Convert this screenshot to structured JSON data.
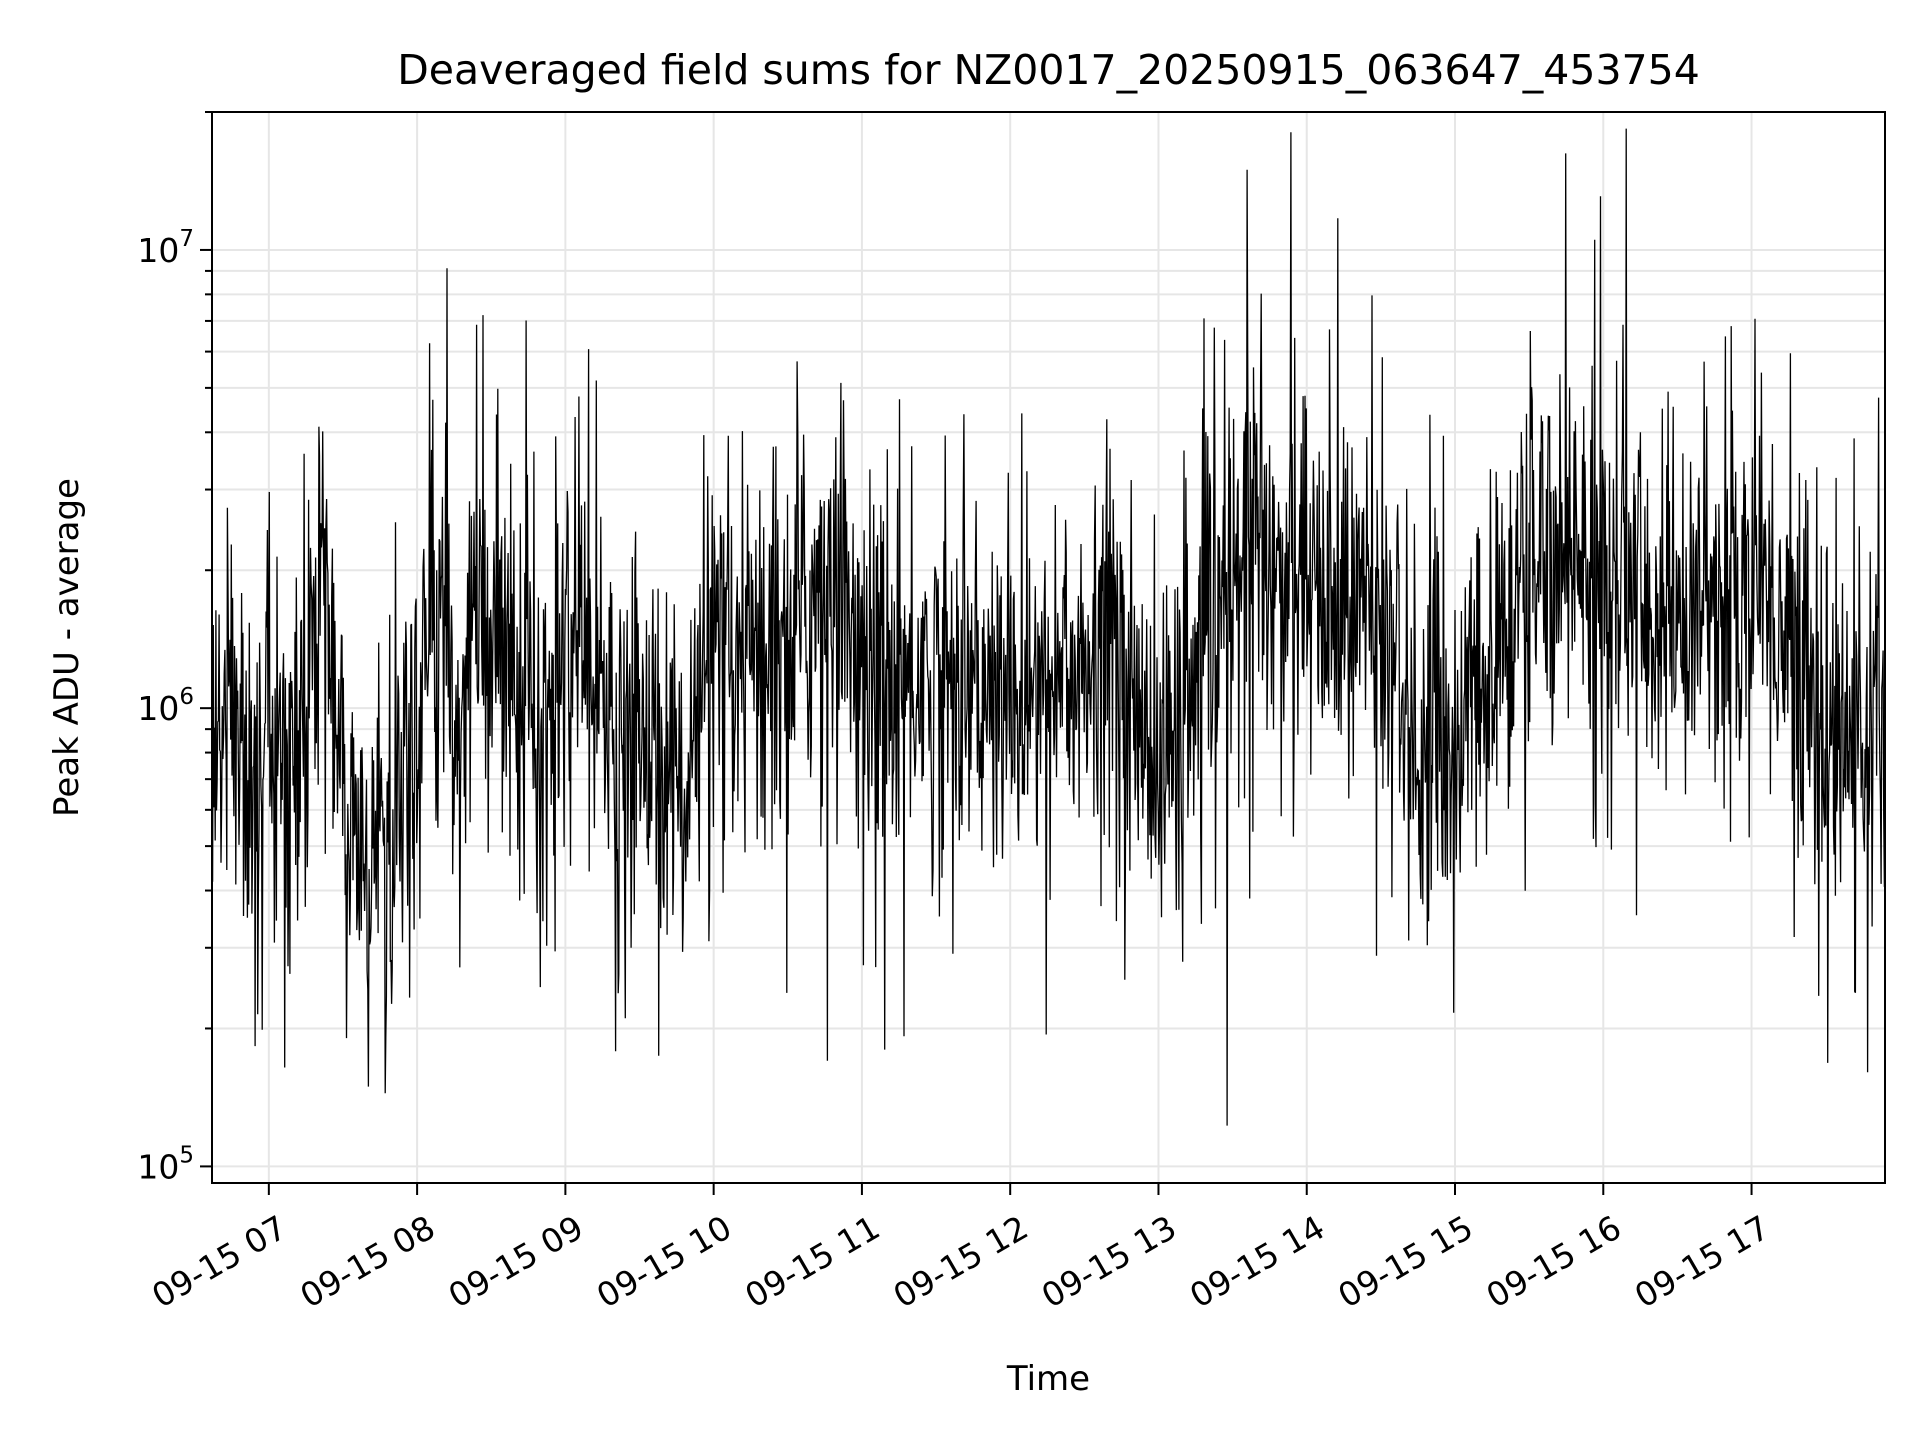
{
  "chart_data": {
    "type": "line",
    "title": "Deaveraged field sums for NZ0017_20250915_063647_453754",
    "xlabel": "Time",
    "ylabel": "Peak ADU - average",
    "yscale": "log",
    "xlim": [
      "2025-09-15 06:37",
      "2025-09-15 17:54"
    ],
    "ylim": [
      92000,
      20000000
    ],
    "xticks": [
      {
        "value": "2025-09-15 07:00",
        "label": "09-15 07"
      },
      {
        "value": "2025-09-15 08:00",
        "label": "09-15 08"
      },
      {
        "value": "2025-09-15 09:00",
        "label": "09-15 09"
      },
      {
        "value": "2025-09-15 10:00",
        "label": "09-15 10"
      },
      {
        "value": "2025-09-15 11:00",
        "label": "09-15 11"
      },
      {
        "value": "2025-09-15 12:00",
        "label": "09-15 12"
      },
      {
        "value": "2025-09-15 13:00",
        "label": "09-15 13"
      },
      {
        "value": "2025-09-15 14:00",
        "label": "09-15 14"
      },
      {
        "value": "2025-09-15 15:00",
        "label": "09-15 15"
      },
      {
        "value": "2025-09-15 16:00",
        "label": "09-15 16"
      },
      {
        "value": "2025-09-15 17:00",
        "label": "09-15 17"
      }
    ],
    "yticks": [
      {
        "value": 100000,
        "base": "10",
        "exp": "5"
      },
      {
        "value": 1000000,
        "base": "10",
        "exp": "6"
      },
      {
        "value": 10000000,
        "base": "10",
        "exp": "7"
      }
    ],
    "grid": true,
    "line_color": "#000000",
    "series": [
      {
        "x": [
          "06:37",
          "06:45",
          "06:52",
          "07:00",
          "07:07",
          "07:15",
          "07:22",
          "07:30",
          "07:37",
          "07:45",
          "07:52",
          "08:00",
          "08:07",
          "08:15",
          "08:22",
          "08:30",
          "08:37",
          "08:45",
          "08:52",
          "09:00",
          "09:07",
          "09:15",
          "09:22",
          "09:30",
          "09:37",
          "09:45",
          "09:52",
          "10:00",
          "10:07",
          "10:15",
          "10:22",
          "10:30",
          "10:37",
          "10:45",
          "10:52",
          "11:00",
          "11:07",
          "11:15",
          "11:22",
          "11:30",
          "11:37",
          "11:45",
          "11:52",
          "12:00",
          "12:07",
          "12:15",
          "12:22",
          "12:30",
          "12:37",
          "12:45",
          "12:52",
          "13:00",
          "13:07",
          "13:15",
          "13:22",
          "13:30",
          "13:37",
          "13:45",
          "13:52",
          "14:00",
          "14:07",
          "14:15",
          "14:22",
          "14:30",
          "14:37",
          "14:45",
          "14:52",
          "15:00",
          "15:07",
          "15:15",
          "15:22",
          "15:30",
          "15:37",
          "15:45",
          "15:52",
          "16:00",
          "16:07",
          "16:15",
          "16:22",
          "16:30",
          "16:37",
          "16:45",
          "16:52",
          "17:00",
          "17:07",
          "17:15",
          "17:22",
          "17:30",
          "17:37",
          "17:45",
          "17:52"
        ],
        "y": [
          700000,
          1100000,
          600000,
          900000,
          700000,
          1000000,
          2500000,
          600000,
          450000,
          500000,
          450000,
          900000,
          1800000,
          900000,
          1500000,
          1400000,
          1700000,
          900000,
          800000,
          1300000,
          1200000,
          900000,
          800000,
          900000,
          800000,
          700000,
          800000,
          1400000,
          1000000,
          1200000,
          1500000,
          1400000,
          1600000,
          1900000,
          2000000,
          1300000,
          1200000,
          1100000,
          1200000,
          1100000,
          1300000,
          1100000,
          1000000,
          1000000,
          1100000,
          1100000,
          1300000,
          1100000,
          1200000,
          1500000,
          1000000,
          700000,
          900000,
          1000000,
          1500000,
          1800000,
          2500000,
          2000000,
          2200000,
          1800000,
          1600000,
          1700000,
          1700000,
          1400000,
          1200000,
          800000,
          900000,
          800000,
          1000000,
          1200000,
          1500000,
          2000000,
          2500000,
          2200000,
          2200000,
          2000000,
          1800000,
          1700000,
          1500000,
          1500000,
          1800000,
          1700000,
          1600000,
          2000000,
          1800000,
          1300000,
          1100000,
          1000000,
          800000,
          900000,
          800000
        ]
      }
    ]
  }
}
